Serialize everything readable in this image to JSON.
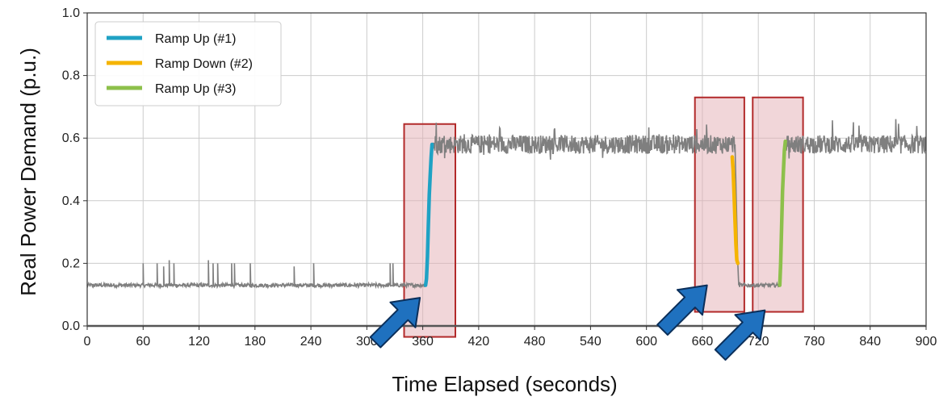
{
  "chart_data": {
    "type": "line",
    "title": "",
    "xlabel": "Time Elapsed (seconds)",
    "ylabel": "Real Power Demand (p.u.)",
    "xlim": [
      0,
      900
    ],
    "ylim": [
      0.0,
      1.0
    ],
    "x_ticks": [
      0,
      60,
      120,
      180,
      240,
      300,
      360,
      420,
      480,
      540,
      600,
      660,
      720,
      780,
      840,
      900
    ],
    "y_ticks": [
      0.0,
      0.2,
      0.4,
      0.6,
      0.8,
      1.0
    ],
    "x_tick_labels": [
      "0",
      "60",
      "120",
      "180",
      "240",
      "300",
      "360",
      "420",
      "480",
      "540",
      "600",
      "660",
      "720",
      "780",
      "840",
      "900"
    ],
    "y_tick_labels": [
      "0.0",
      "0.2",
      "0.4",
      "0.6",
      "0.8",
      "1.0"
    ],
    "grid": true,
    "legend_position": "top-left",
    "background_series": {
      "color": "#7f7f7f",
      "low_level": 0.13,
      "high_level": 0.58,
      "noise_amplitude": 0.03,
      "spikes": [
        {
          "x": 60,
          "y": 0.2
        },
        {
          "x": 75,
          "y": 0.2
        },
        {
          "x": 82,
          "y": 0.19
        },
        {
          "x": 88,
          "y": 0.21
        },
        {
          "x": 93,
          "y": 0.2
        },
        {
          "x": 130,
          "y": 0.21
        },
        {
          "x": 135,
          "y": 0.2
        },
        {
          "x": 140,
          "y": 0.2
        },
        {
          "x": 155,
          "y": 0.2
        },
        {
          "x": 158,
          "y": 0.2
        },
        {
          "x": 175,
          "y": 0.2
        },
        {
          "x": 222,
          "y": 0.19
        },
        {
          "x": 243,
          "y": 0.2
        },
        {
          "x": 325,
          "y": 0.2
        },
        {
          "x": 328,
          "y": 0.2
        }
      ],
      "segments": [
        {
          "x_start": 0,
          "x_end": 362,
          "level": "low"
        },
        {
          "x_start": 371,
          "x_end": 695,
          "level": "high"
        },
        {
          "x_start": 699,
          "x_end": 744,
          "level": "low"
        },
        {
          "x_start": 750,
          "x_end": 900,
          "level": "high"
        }
      ]
    },
    "series": [
      {
        "name": "Ramp Up (#1)",
        "color": "#1fa2c4",
        "x": [
          363,
          364,
          365,
          366,
          367,
          368,
          369,
          370
        ],
        "y": [
          0.13,
          0.15,
          0.22,
          0.32,
          0.42,
          0.48,
          0.54,
          0.58
        ]
      },
      {
        "name": "Ramp Down (#2)",
        "color": "#f5b400",
        "x": [
          692,
          693,
          694,
          695,
          696,
          697,
          698
        ],
        "y": [
          0.54,
          0.5,
          0.42,
          0.34,
          0.26,
          0.21,
          0.2
        ]
      },
      {
        "name": "Ramp Up (#3)",
        "color": "#8dc04b",
        "x": [
          743,
          744,
          745,
          746,
          747,
          748,
          749
        ],
        "y": [
          0.13,
          0.2,
          0.32,
          0.43,
          0.5,
          0.56,
          0.59
        ]
      }
    ],
    "highlight_boxes": [
      {
        "x_start": 340,
        "x_end": 395,
        "y_min": -0.035,
        "y_max": 0.645
      },
      {
        "x_start": 652,
        "x_end": 705,
        "y_min": 0.045,
        "y_max": 0.73
      },
      {
        "x_start": 714,
        "x_end": 768,
        "y_min": 0.045,
        "y_max": 0.73
      }
    ],
    "annotation_arrows": [
      {
        "direction": "up-right",
        "target_x": 357,
        "target_y": 0.09
      },
      {
        "direction": "up-right",
        "target_x": 665,
        "target_y": 0.13
      },
      {
        "direction": "up-right",
        "target_x": 727,
        "target_y": 0.05
      }
    ],
    "colors": {
      "highlight_fill": "#e3aeb3",
      "highlight_stroke": "#b22a2a",
      "arrow_fill": "#1f71bf",
      "arrow_stroke": "#0b2f5a",
      "grid": "#cccccc"
    }
  }
}
